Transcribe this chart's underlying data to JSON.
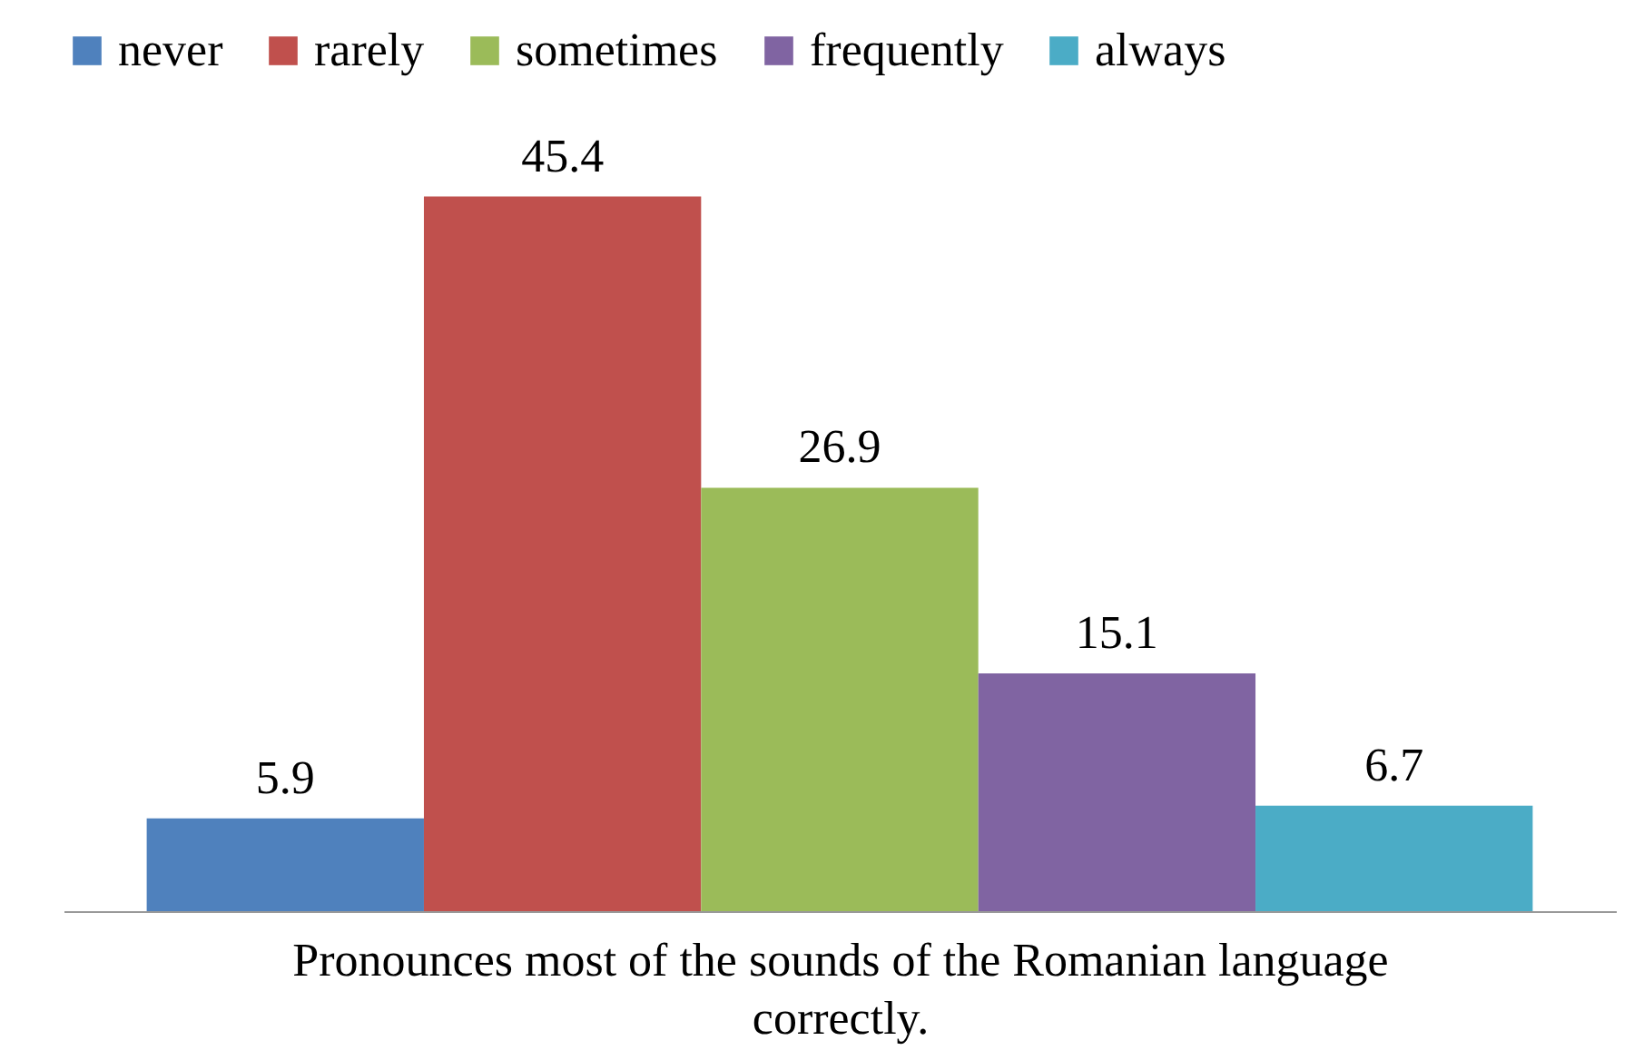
{
  "chart_data": {
    "type": "bar",
    "xlabel": "Pronounces most of the sounds of the Romanian language correctly.",
    "categories": [
      null
    ],
    "series": [
      {
        "name": "never",
        "color": "#4f81bd",
        "values": [
          5.9
        ]
      },
      {
        "name": "rarely",
        "color": "#c0504d",
        "values": [
          45.4
        ]
      },
      {
        "name": "sometimes",
        "color": "#9bbb59",
        "values": [
          26.9
        ]
      },
      {
        "name": "frequently",
        "color": "#8064a2",
        "values": [
          15.1
        ]
      },
      {
        "name": "always",
        "color": "#4bacc6",
        "values": [
          6.7
        ]
      }
    ],
    "data_labels": true,
    "legend": "top",
    "tick_labels": false
  }
}
